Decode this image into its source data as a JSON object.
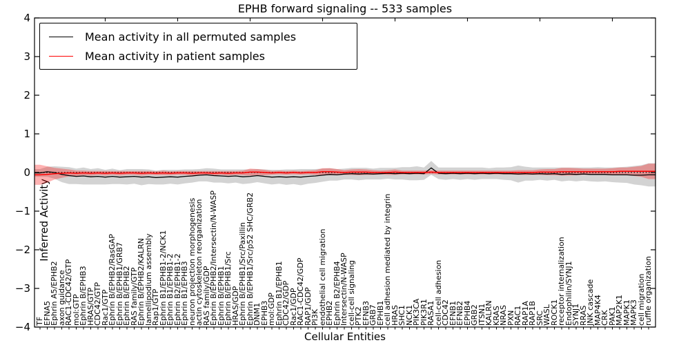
{
  "chart_data": {
    "type": "line",
    "title": "EPHB forward signaling -- 533 samples",
    "xlabel": "Cellular Entities",
    "ylabel": "Inferred Activity",
    "ylim": [
      -4,
      4
    ],
    "y_ticks": [
      4,
      3,
      2,
      1,
      0,
      -1,
      -2,
      -3,
      -4
    ],
    "y_tick_labels": [
      "4",
      "3",
      "2",
      "1",
      "0",
      "−1",
      "−2",
      "−3",
      "−4"
    ],
    "grid": false,
    "zero_line": "dotted",
    "legend_position": "upper left",
    "categories": [
      "TF",
      "EFNA5",
      "Ephrin A5/EPHB2",
      "axon guidance",
      "RAC1-CDC42/GTP",
      "mol:GTP",
      "Ephrin B/EPHB3",
      "HRAS/GTP",
      "CDC42/GTP",
      "Rac1/GTP",
      "Ephrin B/EPHB2/RasGAP",
      "Ephrin B/EPHB1/GRB7",
      "Ephrin B/EPHB2",
      "RAS family/GTP",
      "Ephrin B/EPHB2/KALRN",
      "lamellipodium assembly",
      "Rap1/GTP",
      "Ephrin B1/EPHB1-2/NCK1",
      "Ephrin B1/EPHB1-2",
      "Ephrin B2/EPHB1-2",
      "Ephrin B1/EPHB3",
      "neuron projection morphogenesis",
      "actin cytoskeleton reorganization",
      "RAS family/GDP",
      "Ephrin B/EPHB2/Intersectin/N-WASP",
      "Ephrin B/EPHB1",
      "Ephrin B/EPHB1/Src",
      "HRAS/GDP",
      "Ephrin B/EPHB1/Src/Paxillin",
      "Ephrin B/EPHB1/Src/p52 SHC/GRB2",
      "DNM1",
      "EPHB3",
      "mol:GDP",
      "Ephrin B1/EPHB1",
      "CDC42/GDP",
      "Rac1/GDP",
      "RAC1-CDC42/GDP",
      "RAP1/GDP",
      "PI3K",
      "endothelial cell migration",
      "EPHB2",
      "Ephrin B2/EPHB4",
      "Intersectin/N-WASP",
      "cell-cell signaling",
      "PTK2",
      "EFNB3",
      "GRB7",
      "EPHB1",
      "cell adhesion mediated by integrin",
      "HRAS",
      "SHC1",
      "NCK1",
      "PIK3CA",
      "PIK3R1",
      "RASA1",
      "cell-cell adhesion",
      "CDC42",
      "EFNB1",
      "EFNB2",
      "EPHB4",
      "GRB2",
      "ITSN1",
      "KALRN",
      "KRAS",
      "NRAS",
      "PXN",
      "RAC1",
      "RAP1A",
      "RAP1B",
      "SRC",
      "WASL",
      "ROCK1",
      "receptor internalization",
      "Endophilin/SYNJ1",
      "SYNJ1",
      "RRAS",
      "JNK cascade",
      "MAP4K4",
      "CRK",
      "PAK1",
      "MAP2K1",
      "MAPK1",
      "MAPK3",
      "cell migration",
      "ruffle organization"
    ],
    "series": [
      {
        "name": "Mean activity in all permuted samples",
        "color": "#000000",
        "band_color": "rgba(128,128,128,0.35)",
        "values": [
          -0.01,
          0.02,
          0.0,
          -0.05,
          -0.08,
          -0.1,
          -0.09,
          -0.11,
          -0.1,
          -0.12,
          -0.1,
          -0.12,
          -0.11,
          -0.1,
          -0.12,
          -0.11,
          -0.13,
          -0.12,
          -0.11,
          -0.12,
          -0.1,
          -0.09,
          -0.07,
          -0.06,
          -0.08,
          -0.09,
          -0.1,
          -0.09,
          -0.11,
          -0.1,
          -0.08,
          -0.1,
          -0.12,
          -0.11,
          -0.12,
          -0.11,
          -0.12,
          -0.1,
          -0.09,
          -0.07,
          -0.05,
          -0.06,
          -0.04,
          -0.03,
          -0.04,
          -0.03,
          -0.04,
          -0.03,
          -0.02,
          -0.03,
          -0.02,
          -0.03,
          -0.02,
          -0.03,
          0.12,
          -0.02,
          -0.03,
          -0.02,
          -0.03,
          -0.02,
          -0.03,
          -0.02,
          -0.03,
          -0.02,
          -0.03,
          -0.03,
          -0.04,
          -0.03,
          -0.04,
          -0.03,
          -0.04,
          -0.03,
          -0.05,
          -0.04,
          -0.05,
          -0.04,
          -0.05,
          -0.05,
          -0.05,
          -0.06,
          -0.06,
          -0.06,
          -0.07,
          -0.07,
          -0.06
        ],
        "std": [
          0.1,
          0.13,
          0.16,
          0.2,
          0.22,
          0.2,
          0.22,
          0.2,
          0.21,
          0.19,
          0.2,
          0.18,
          0.2,
          0.19,
          0.21,
          0.19,
          0.18,
          0.19,
          0.18,
          0.19,
          0.18,
          0.17,
          0.16,
          0.17,
          0.18,
          0.17,
          0.18,
          0.17,
          0.19,
          0.18,
          0.17,
          0.18,
          0.19,
          0.18,
          0.2,
          0.19,
          0.21,
          0.19,
          0.18,
          0.17,
          0.16,
          0.15,
          0.14,
          0.15,
          0.16,
          0.15,
          0.14,
          0.15,
          0.14,
          0.15,
          0.16,
          0.17,
          0.18,
          0.16,
          0.18,
          0.15,
          0.16,
          0.15,
          0.16,
          0.15,
          0.16,
          0.15,
          0.14,
          0.15,
          0.16,
          0.17,
          0.22,
          0.18,
          0.17,
          0.16,
          0.17,
          0.16,
          0.18,
          0.17,
          0.18,
          0.17,
          0.18,
          0.19,
          0.18,
          0.19,
          0.2,
          0.21,
          0.24,
          0.26,
          0.3
        ]
      },
      {
        "name": "Mean activity in patient samples",
        "color": "#ff0000",
        "band_color": "rgba(255,0,0,0.30)",
        "values": [
          -0.06,
          -0.05,
          -0.03,
          -0.02,
          -0.01,
          -0.02,
          -0.01,
          -0.02,
          -0.01,
          -0.02,
          -0.01,
          -0.02,
          -0.01,
          -0.01,
          -0.02,
          -0.01,
          -0.02,
          -0.01,
          -0.02,
          -0.01,
          -0.01,
          -0.02,
          -0.01,
          -0.01,
          -0.02,
          -0.01,
          -0.02,
          -0.01,
          -0.01,
          0.01,
          0.01,
          0.0,
          -0.01,
          0.0,
          -0.01,
          0.0,
          -0.01,
          0.0,
          0.0,
          0.02,
          0.02,
          0.01,
          0.0,
          0.01,
          0.01,
          0.01,
          0.0,
          0.0,
          0.0,
          0.01,
          0.0,
          0.0,
          0.0,
          0.0,
          0.01,
          0.0,
          0.0,
          0.0,
          0.0,
          0.0,
          0.0,
          0.0,
          0.0,
          0.0,
          0.0,
          0.0,
          0.0,
          0.0,
          0.0,
          0.01,
          0.01,
          0.01,
          0.02,
          0.02,
          0.02,
          0.02,
          0.02,
          0.02,
          0.02,
          0.02,
          0.03,
          0.03,
          0.03,
          0.03,
          0.03
        ],
        "std": [
          0.26,
          0.21,
          0.15,
          0.12,
          0.09,
          0.07,
          0.06,
          0.06,
          0.05,
          0.06,
          0.05,
          0.06,
          0.05,
          0.05,
          0.06,
          0.05,
          0.05,
          0.06,
          0.05,
          0.05,
          0.05,
          0.06,
          0.05,
          0.05,
          0.06,
          0.05,
          0.06,
          0.05,
          0.06,
          0.09,
          0.08,
          0.07,
          0.05,
          0.05,
          0.05,
          0.05,
          0.05,
          0.05,
          0.06,
          0.09,
          0.09,
          0.08,
          0.06,
          0.07,
          0.08,
          0.07,
          0.06,
          0.05,
          0.06,
          0.07,
          0.05,
          0.05,
          0.05,
          0.05,
          0.05,
          0.05,
          0.05,
          0.05,
          0.05,
          0.05,
          0.05,
          0.05,
          0.05,
          0.05,
          0.05,
          0.05,
          0.06,
          0.06,
          0.06,
          0.07,
          0.08,
          0.08,
          0.1,
          0.1,
          0.09,
          0.08,
          0.08,
          0.08,
          0.08,
          0.09,
          0.1,
          0.1,
          0.12,
          0.14,
          0.2
        ]
      }
    ]
  }
}
